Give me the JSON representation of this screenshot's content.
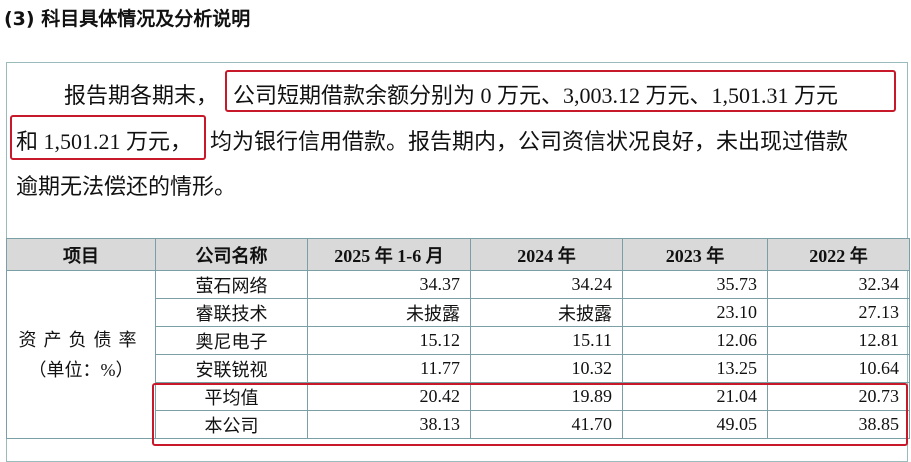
{
  "header": {
    "title": "(3) 科目具体情况及分析说明"
  },
  "paragraph": {
    "segments": [
      "报告期各期末，",
      "公司短期借款余额分别为 0 万元、3,003.12 万元、1,501.31 万元",
      "和 1,501.21 万元，",
      "均为银行信用借款。报告期内，公司资信状况良好，未出现过借款",
      "逾期无法偿还的情形。"
    ]
  },
  "table": {
    "columns": [
      "项目",
      "公司名称",
      "2025 年 1-6 月",
      "2024 年",
      "2023 年",
      "2022 年"
    ],
    "row_header": [
      "资产负债率",
      "（单位：%）"
    ],
    "rows": [
      [
        "萤石网络",
        "34.37",
        "34.24",
        "35.73",
        "32.34"
      ],
      [
        "睿联技术",
        "未披露",
        "未披露",
        "23.10",
        "27.13"
      ],
      [
        "奥尼电子",
        "15.12",
        "15.11",
        "12.06",
        "12.81"
      ],
      [
        "安联锐视",
        "11.77",
        "10.32",
        "13.25",
        "10.64"
      ],
      [
        "平均值",
        "20.42",
        "19.89",
        "21.04",
        "20.73"
      ],
      [
        "本公司",
        "38.13",
        "41.70",
        "49.05",
        "38.85"
      ]
    ]
  }
}
